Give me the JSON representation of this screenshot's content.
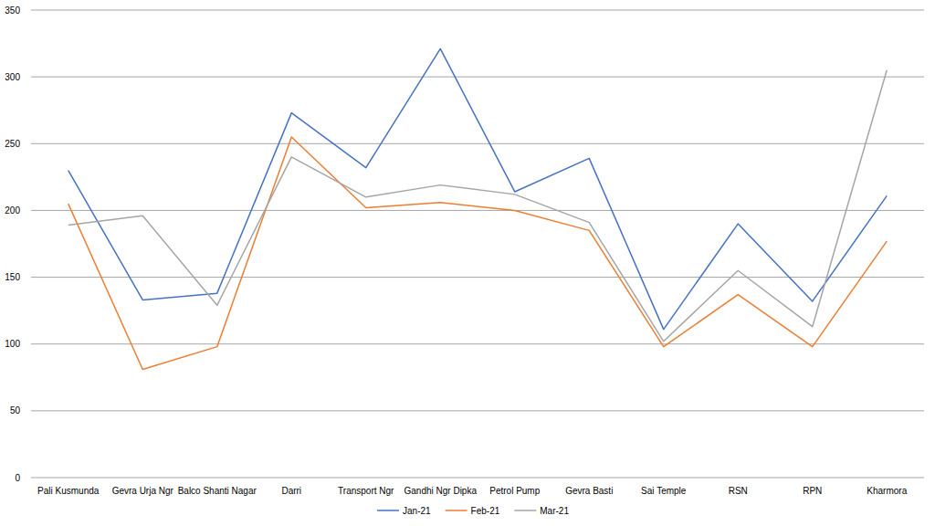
{
  "chart_data": {
    "type": "line",
    "categories": [
      "Pali Kusmunda",
      "Gevra Urja Ngr",
      "Balco Shanti Nagar",
      "Darri",
      "Transport Ngr",
      "Gandhi Ngr Dipka",
      "Petrol Pump",
      "Gevra Basti",
      "Sai Temple",
      "RSN",
      "RPN",
      "Kharmora"
    ],
    "series": [
      {
        "name": "Jan-21",
        "color": "#4472c4",
        "values": [
          230,
          133,
          138,
          273,
          232,
          321,
          214,
          239,
          111,
          190,
          132,
          211
        ]
      },
      {
        "name": "Feb-21",
        "color": "#ed7d31",
        "values": [
          205,
          81,
          98,
          255,
          202,
          206,
          200,
          185,
          98,
          137,
          98,
          177
        ]
      },
      {
        "name": "Mar-21",
        "color": "#a5a5a5",
        "values": [
          189,
          196,
          129,
          240,
          210,
          219,
          212,
          191,
          102,
          155,
          113,
          305
        ]
      }
    ],
    "ylim": [
      0,
      350
    ],
    "yticks": [
      0,
      50,
      100,
      150,
      200,
      250,
      300,
      350
    ],
    "grid": true,
    "legend": "bottom"
  }
}
